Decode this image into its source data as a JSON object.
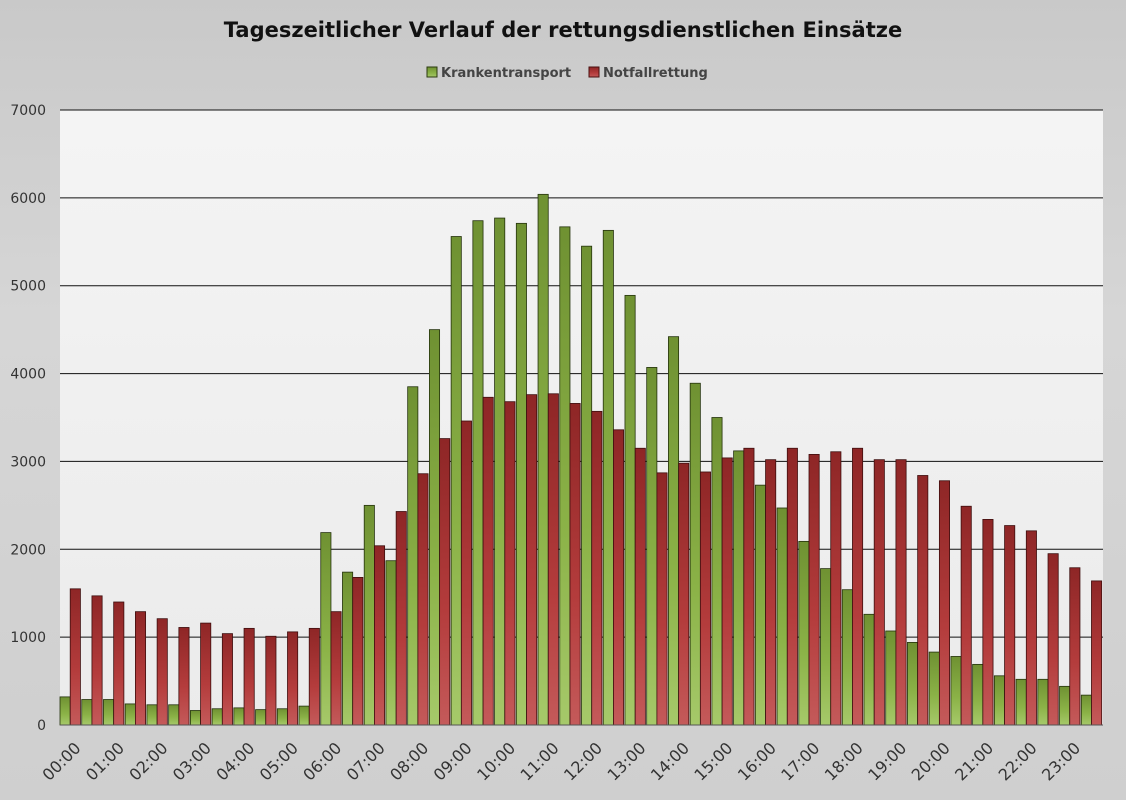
{
  "chart_data": {
    "type": "bar",
    "title": "Tageszeitlicher Verlauf der rettungsdienstlichen Einsätze",
    "xlabel": "",
    "ylabel": "",
    "ylim": [
      0,
      7000
    ],
    "yticks": [
      0,
      1000,
      2000,
      3000,
      4000,
      5000,
      6000,
      7000
    ],
    "grid": true,
    "legend_position": "top",
    "xtick_labels": [
      "00:00",
      "01:00",
      "02:00",
      "03:00",
      "04:00",
      "05:00",
      "06:00",
      "07:00",
      "08:00",
      "09:00",
      "10:00",
      "11:00",
      "12:00",
      "13:00",
      "14:00",
      "15:00",
      "16:00",
      "17:00",
      "18:00",
      "19:00",
      "20:00",
      "21:00",
      "22:00",
      "23:00"
    ],
    "categories": [
      "00:00",
      "00:30",
      "01:00",
      "01:30",
      "02:00",
      "02:30",
      "03:00",
      "03:30",
      "04:00",
      "04:30",
      "05:00",
      "05:30",
      "06:00",
      "06:30",
      "07:00",
      "07:30",
      "08:00",
      "08:30",
      "09:00",
      "09:30",
      "10:00",
      "10:30",
      "11:00",
      "11:30",
      "12:00",
      "12:30",
      "13:00",
      "13:30",
      "14:00",
      "14:30",
      "15:00",
      "15:30",
      "16:00",
      "16:30",
      "17:00",
      "17:30",
      "18:00",
      "18:30",
      "19:00",
      "19:30",
      "20:00",
      "20:30",
      "21:00",
      "21:30",
      "22:00",
      "22:30",
      "23:00",
      "23:30"
    ],
    "series": [
      {
        "name": "Krankentransport",
        "color": "#7ea03a",
        "values": [
          320,
          290,
          290,
          240,
          230,
          230,
          165,
          185,
          195,
          175,
          185,
          215,
          2190,
          1740,
          2500,
          1870,
          3850,
          4500,
          5560,
          5740,
          5770,
          5710,
          6040,
          5670,
          5450,
          5630,
          4890,
          4070,
          4420,
          3890,
          3500,
          3120,
          2730,
          2470,
          2090,
          1780,
          1540,
          1260,
          1070,
          940,
          830,
          780,
          690,
          560,
          520,
          520,
          440,
          340
        ]
      },
      {
        "name": "Notfallrettung",
        "color": "#b53a3a",
        "values": [
          1550,
          1470,
          1400,
          1290,
          1210,
          1110,
          1160,
          1040,
          1100,
          1010,
          1060,
          1100,
          1290,
          1680,
          2040,
          2430,
          2860,
          3260,
          3460,
          3730,
          3680,
          3760,
          3770,
          3660,
          3570,
          3360,
          3150,
          2870,
          2980,
          2880,
          3040,
          3150,
          3020,
          3150,
          3080,
          3110,
          3150,
          3020,
          3020,
          2840,
          2780,
          2490,
          2340,
          2270,
          2210,
          1950,
          1790,
          1640
        ]
      }
    ]
  }
}
